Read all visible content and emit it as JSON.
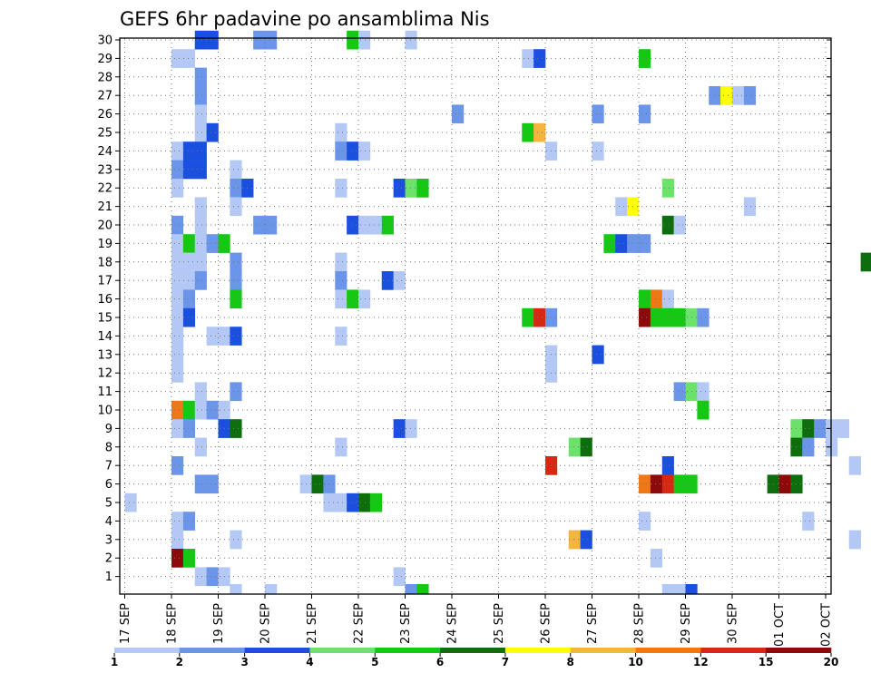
{
  "chart_data": {
    "type": "heatmap",
    "title": "GEFS 6hr padavine po ansamblima Nis",
    "xlabel": "",
    "ylabel": "",
    "y_ticks": [
      1,
      2,
      3,
      4,
      5,
      6,
      7,
      8,
      9,
      10,
      11,
      12,
      13,
      14,
      15,
      16,
      17,
      18,
      19,
      20,
      21,
      22,
      23,
      24,
      25,
      26,
      27,
      28,
      29,
      30
    ],
    "x_ticks": [
      "17 SEP",
      "18 SEP",
      "19 SEP",
      "20 SEP",
      "21 SEP",
      "22 SEP",
      "23 SEP",
      "24 SEP",
      "25 SEP",
      "26 SEP",
      "27 SEP",
      "28 SEP",
      "29 SEP",
      "30 SEP",
      "01 OCT",
      "02 OCT"
    ],
    "x_steps_per_day": 4,
    "grid": "dotted",
    "legend": {
      "position": "bottom",
      "levels": [
        "1",
        "2",
        "3",
        "4",
        "5",
        "6",
        "7",
        "8",
        "10",
        "12",
        "15",
        "20"
      ],
      "colors": [
        "#b4c8f5",
        "#6b95e8",
        "#1a4fe0",
        "#6be36b",
        "#14c814",
        "#0e6e0e",
        "#ffff00",
        "#f5b43c",
        "#f07814",
        "#d72814",
        "#8c0a0a"
      ]
    },
    "cells": [
      [
        30,
        6,
        3
      ],
      [
        30,
        7,
        3
      ],
      [
        30,
        11,
        2
      ],
      [
        30,
        12,
        2
      ],
      [
        30,
        19,
        5
      ],
      [
        30,
        20,
        1
      ],
      [
        30,
        24,
        1
      ],
      [
        30,
        68,
        5
      ],
      [
        30,
        69,
        20
      ],
      [
        30,
        70,
        1
      ],
      [
        30,
        71,
        5
      ],
      [
        29,
        4,
        1
      ],
      [
        29,
        5,
        1
      ],
      [
        29,
        34,
        1
      ],
      [
        29,
        35,
        3
      ],
      [
        29,
        44,
        5
      ],
      [
        29,
        78,
        1
      ],
      [
        29,
        99,
        1
      ],
      [
        29,
        116,
        5
      ],
      [
        28,
        6,
        2
      ],
      [
        27,
        6,
        2
      ],
      [
        27,
        50,
        2
      ],
      [
        27,
        51,
        7
      ],
      [
        27,
        52,
        1
      ],
      [
        27,
        53,
        2
      ],
      [
        26,
        6,
        1
      ],
      [
        26,
        28,
        2
      ],
      [
        26,
        40,
        2
      ],
      [
        26,
        44,
        2
      ],
      [
        26,
        69,
        2
      ],
      [
        26,
        101,
        1
      ],
      [
        25,
        6,
        1
      ],
      [
        25,
        7,
        3
      ],
      [
        25,
        18,
        1
      ],
      [
        25,
        34,
        5
      ],
      [
        25,
        35,
        8
      ],
      [
        24,
        4,
        1
      ],
      [
        24,
        5,
        3
      ],
      [
        24,
        6,
        3
      ],
      [
        24,
        18,
        2
      ],
      [
        24,
        19,
        3
      ],
      [
        24,
        20,
        1
      ],
      [
        24,
        36,
        1
      ],
      [
        24,
        40,
        1
      ],
      [
        24,
        82,
        1
      ],
      [
        24,
        105,
        1
      ],
      [
        24,
        106,
        2
      ],
      [
        24,
        107,
        1
      ],
      [
        24,
        108,
        2
      ],
      [
        24,
        109,
        2
      ],
      [
        24,
        110,
        2
      ],
      [
        23,
        4,
        2
      ],
      [
        23,
        5,
        3
      ],
      [
        23,
        6,
        3
      ],
      [
        23,
        9,
        1
      ],
      [
        23,
        91,
        1
      ],
      [
        22,
        4,
        1
      ],
      [
        22,
        9,
        2
      ],
      [
        22,
        10,
        3
      ],
      [
        22,
        18,
        1
      ],
      [
        22,
        23,
        3
      ],
      [
        22,
        24,
        4
      ],
      [
        22,
        25,
        5
      ],
      [
        22,
        46,
        4
      ],
      [
        22,
        93,
        1
      ],
      [
        22,
        94,
        1
      ],
      [
        21,
        6,
        1
      ],
      [
        21,
        9,
        1
      ],
      [
        21,
        42,
        1
      ],
      [
        21,
        43,
        7
      ],
      [
        21,
        53,
        1
      ],
      [
        21,
        107,
        1
      ],
      [
        21,
        108,
        1
      ],
      [
        21,
        109,
        1
      ],
      [
        20,
        4,
        2
      ],
      [
        20,
        6,
        1
      ],
      [
        20,
        11,
        2
      ],
      [
        20,
        12,
        2
      ],
      [
        20,
        19,
        3
      ],
      [
        20,
        20,
        1
      ],
      [
        20,
        21,
        1
      ],
      [
        20,
        22,
        5
      ],
      [
        20,
        46,
        6
      ],
      [
        20,
        47,
        1
      ],
      [
        20,
        89,
        1
      ],
      [
        20,
        108,
        6
      ],
      [
        19,
        4,
        1
      ],
      [
        19,
        5,
        5
      ],
      [
        19,
        6,
        1
      ],
      [
        19,
        7,
        2
      ],
      [
        19,
        8,
        5
      ],
      [
        19,
        41,
        5
      ],
      [
        19,
        42,
        3
      ],
      [
        19,
        43,
        2
      ],
      [
        19,
        44,
        2
      ],
      [
        19,
        78,
        10
      ],
      [
        19,
        79,
        2
      ],
      [
        18,
        4,
        1
      ],
      [
        18,
        5,
        1
      ],
      [
        18,
        6,
        1
      ],
      [
        18,
        9,
        2
      ],
      [
        18,
        18,
        1
      ],
      [
        18,
        63,
        6
      ],
      [
        18,
        66,
        1
      ],
      [
        17,
        4,
        1
      ],
      [
        17,
        5,
        1
      ],
      [
        17,
        6,
        2
      ],
      [
        17,
        9,
        2
      ],
      [
        17,
        18,
        2
      ],
      [
        17,
        22,
        3
      ],
      [
        17,
        23,
        1
      ],
      [
        17,
        64,
        1
      ],
      [
        17,
        99,
        1
      ],
      [
        17,
        100,
        1
      ],
      [
        17,
        101,
        1
      ],
      [
        17,
        102,
        2
      ],
      [
        17,
        103,
        1
      ],
      [
        17,
        105,
        5
      ],
      [
        17,
        106,
        10
      ],
      [
        17,
        107,
        2
      ],
      [
        17,
        108,
        1
      ],
      [
        17,
        109,
        3
      ],
      [
        16,
        4,
        1
      ],
      [
        16,
        5,
        2
      ],
      [
        16,
        9,
        5
      ],
      [
        16,
        18,
        1
      ],
      [
        16,
        19,
        5
      ],
      [
        16,
        20,
        1
      ],
      [
        16,
        44,
        5
      ],
      [
        16,
        45,
        10
      ],
      [
        16,
        46,
        1
      ],
      [
        15,
        4,
        1
      ],
      [
        15,
        5,
        3
      ],
      [
        15,
        34,
        5
      ],
      [
        15,
        35,
        12
      ],
      [
        15,
        36,
        2
      ],
      [
        15,
        44,
        15
      ],
      [
        15,
        45,
        5
      ],
      [
        15,
        46,
        5
      ],
      [
        15,
        47,
        5
      ],
      [
        15,
        48,
        4
      ],
      [
        15,
        49,
        2
      ],
      [
        15,
        95,
        12
      ],
      [
        15,
        96,
        12
      ],
      [
        15,
        97,
        4
      ],
      [
        14,
        4,
        1
      ],
      [
        14,
        7,
        1
      ],
      [
        14,
        8,
        1
      ],
      [
        14,
        9,
        3
      ],
      [
        14,
        18,
        1
      ],
      [
        13,
        4,
        1
      ],
      [
        13,
        36,
        1
      ],
      [
        13,
        40,
        3
      ],
      [
        12,
        4,
        1
      ],
      [
        12,
        36,
        1
      ],
      [
        11,
        6,
        1
      ],
      [
        11,
        9,
        2
      ],
      [
        11,
        47,
        2
      ],
      [
        11,
        48,
        4
      ],
      [
        11,
        49,
        1
      ],
      [
        10,
        4,
        10
      ],
      [
        10,
        5,
        5
      ],
      [
        10,
        6,
        1
      ],
      [
        10,
        7,
        2
      ],
      [
        10,
        8,
        1
      ],
      [
        10,
        49,
        5
      ],
      [
        10,
        89,
        1
      ],
      [
        9,
        4,
        1
      ],
      [
        9,
        5,
        2
      ],
      [
        9,
        8,
        3
      ],
      [
        9,
        9,
        6
      ],
      [
        9,
        23,
        3
      ],
      [
        9,
        24,
        1
      ],
      [
        9,
        57,
        4
      ],
      [
        9,
        58,
        6
      ],
      [
        9,
        59,
        2
      ],
      [
        9,
        60,
        1
      ],
      [
        9,
        61,
        1
      ],
      [
        9,
        97,
        5
      ],
      [
        8,
        6,
        1
      ],
      [
        8,
        18,
        1
      ],
      [
        8,
        38,
        4
      ],
      [
        8,
        39,
        6
      ],
      [
        8,
        57,
        6
      ],
      [
        8,
        58,
        2
      ],
      [
        8,
        60,
        1
      ],
      [
        8,
        77,
        1
      ],
      [
        8,
        78,
        1
      ],
      [
        7,
        4,
        2
      ],
      [
        7,
        36,
        12
      ],
      [
        7,
        46,
        3
      ],
      [
        7,
        62,
        1
      ],
      [
        7,
        67,
        2
      ],
      [
        7,
        68,
        1
      ],
      [
        6,
        6,
        2
      ],
      [
        6,
        7,
        2
      ],
      [
        6,
        15,
        1
      ],
      [
        6,
        16,
        6
      ],
      [
        6,
        17,
        2
      ],
      [
        6,
        44,
        10
      ],
      [
        6,
        45,
        15
      ],
      [
        6,
        46,
        12
      ],
      [
        6,
        47,
        5
      ],
      [
        6,
        48,
        5
      ],
      [
        6,
        55,
        6
      ],
      [
        6,
        56,
        20
      ],
      [
        6,
        57,
        6
      ],
      [
        5,
        0,
        1
      ],
      [
        5,
        17,
        1
      ],
      [
        5,
        18,
        1
      ],
      [
        5,
        19,
        3
      ],
      [
        5,
        20,
        6
      ],
      [
        5,
        21,
        5
      ],
      [
        4,
        4,
        1
      ],
      [
        4,
        5,
        2
      ],
      [
        4,
        44,
        1
      ],
      [
        4,
        58,
        1
      ],
      [
        4,
        83,
        2
      ],
      [
        4,
        84,
        4
      ],
      [
        4,
        85,
        5
      ],
      [
        4,
        86,
        6
      ],
      [
        4,
        87,
        1
      ],
      [
        3,
        4,
        1
      ],
      [
        3,
        9,
        1
      ],
      [
        3,
        38,
        8
      ],
      [
        3,
        39,
        3
      ],
      [
        3,
        62,
        1
      ],
      [
        3,
        64,
        1
      ],
      [
        3,
        65,
        5
      ],
      [
        3,
        66,
        2
      ],
      [
        3,
        70,
        2
      ],
      [
        3,
        71,
        6
      ],
      [
        3,
        73,
        1
      ],
      [
        3,
        74,
        1
      ],
      [
        3,
        83,
        10
      ],
      [
        3,
        84,
        8
      ],
      [
        3,
        85,
        2
      ],
      [
        2,
        4,
        15
      ],
      [
        2,
        5,
        5
      ],
      [
        2,
        45,
        1
      ],
      [
        2,
        66,
        2
      ],
      [
        2,
        83,
        5
      ],
      [
        2,
        84,
        8
      ],
      [
        2,
        85,
        1
      ],
      [
        1,
        6,
        1
      ],
      [
        1,
        7,
        2
      ],
      [
        1,
        8,
        1
      ],
      [
        1,
        23,
        1
      ],
      [
        1,
        97,
        1
      ],
      [
        1,
        100,
        2
      ],
      [
        1,
        101,
        10
      ],
      [
        1,
        105,
        1
      ],
      [
        1,
        106,
        1
      ],
      [
        0,
        9,
        1
      ],
      [
        0,
        12,
        1
      ],
      [
        0,
        24,
        2
      ],
      [
        0,
        25,
        5
      ],
      [
        0,
        46,
        1
      ],
      [
        0,
        47,
        1
      ],
      [
        0,
        48,
        3
      ]
    ]
  }
}
